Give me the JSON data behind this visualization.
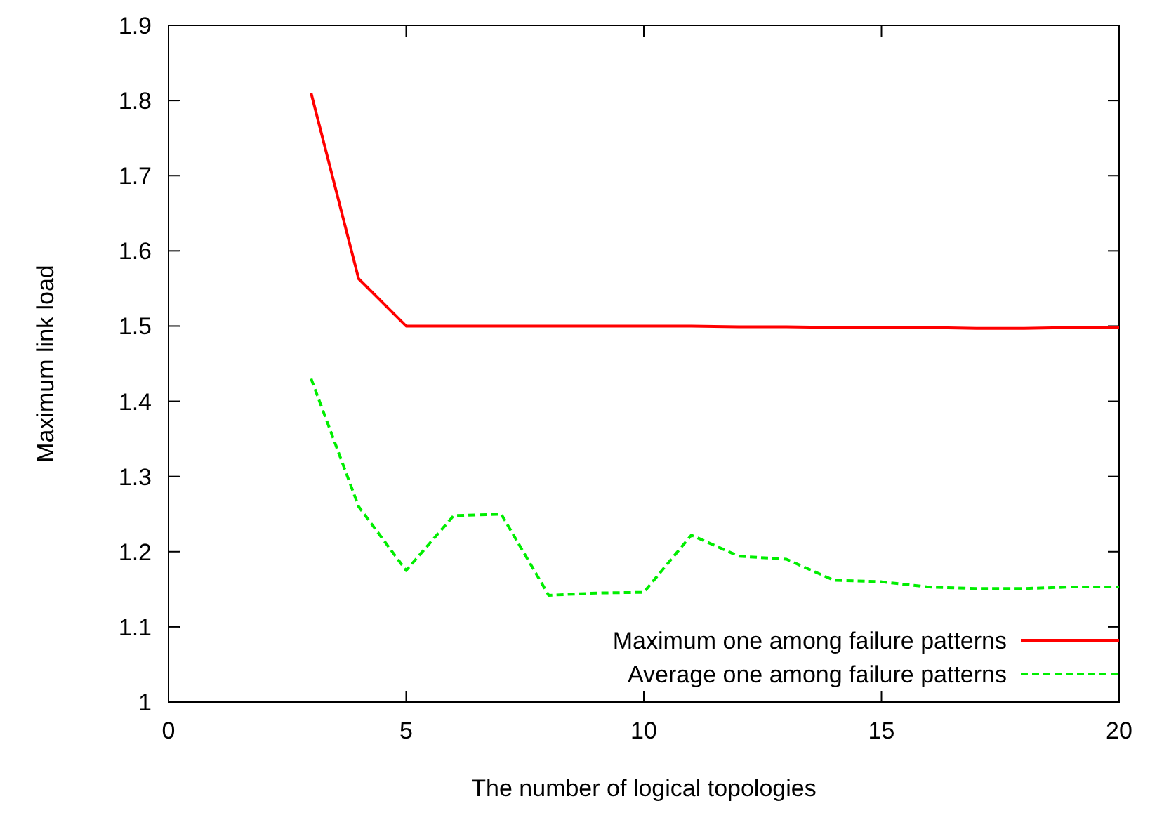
{
  "chart_data": {
    "type": "line",
    "xlabel": "The number of logical topologies",
    "ylabel": "Maximum link load",
    "x": [
      3,
      4,
      5,
      6,
      7,
      8,
      9,
      10,
      11,
      12,
      13,
      14,
      15,
      16,
      17,
      18,
      19,
      20
    ],
    "series": [
      {
        "name": "Maximum one among failure patterns",
        "color": "#ff0000",
        "line_style": "solid",
        "values": [
          1.81,
          1.563,
          1.5,
          1.5,
          1.5,
          1.5,
          1.5,
          1.5,
          1.5,
          1.499,
          1.499,
          1.498,
          1.498,
          1.498,
          1.497,
          1.497,
          1.498,
          1.498
        ]
      },
      {
        "name": "Average one among failure patterns",
        "color": "#00ee00",
        "line_style": "dashed",
        "values": [
          1.43,
          1.26,
          1.175,
          1.248,
          1.25,
          1.142,
          1.145,
          1.146,
          1.222,
          1.194,
          1.19,
          1.162,
          1.16,
          1.153,
          1.151,
          1.151,
          1.153,
          1.153
        ]
      }
    ],
    "xlim": [
      0,
      20
    ],
    "xticks": [
      0,
      5,
      10,
      15,
      20
    ],
    "ylim": [
      1,
      1.9
    ],
    "yticks": [
      1,
      1.1,
      1.2,
      1.3,
      1.4,
      1.5,
      1.6,
      1.7,
      1.8,
      1.9
    ],
    "grid": false,
    "legend": "bottom right",
    "marker": "none"
  }
}
